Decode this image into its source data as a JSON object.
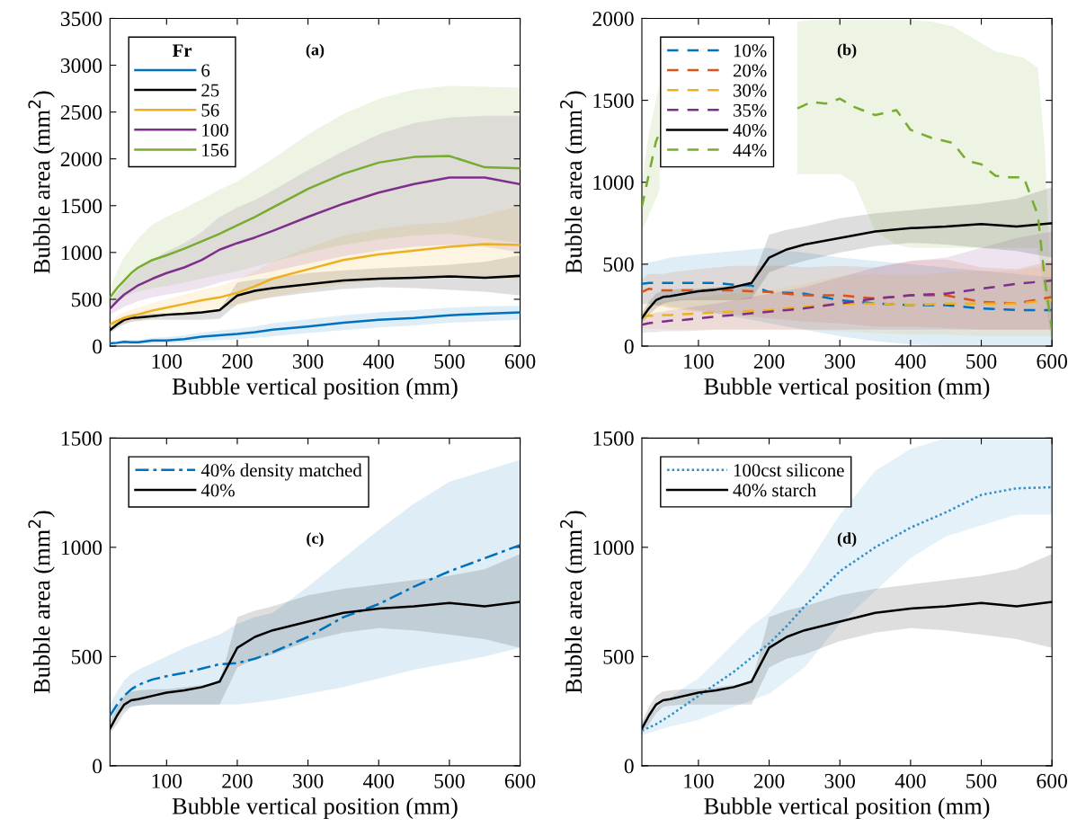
{
  "chart_data": [
    {
      "type": "line",
      "annotations": [
        "(a)"
      ],
      "xlabel": "Bubble vertical position (mm)",
      "ylabel": "Bubble area (mm$^{2}$)",
      "legend_title": "Fr",
      "legend": "top left",
      "grid": false,
      "xlim": [
        20,
        600
      ],
      "xticks": [
        100,
        200,
        300,
        400,
        500,
        600
      ],
      "ylim": [
        0,
        3500
      ],
      "yticks": [
        0,
        500,
        1000,
        1500,
        2000,
        2500,
        3000,
        3500
      ],
      "x": [
        20,
        30,
        40,
        50,
        60,
        80,
        100,
        125,
        150,
        175,
        200,
        225,
        250,
        300,
        350,
        400,
        450,
        500,
        550,
        600
      ],
      "series": [
        {
          "name": "6",
          "color": "#0072bd",
          "line_style": "solid",
          "values": [
            30,
            35,
            45,
            40,
            40,
            60,
            60,
            75,
            100,
            115,
            130,
            150,
            175,
            210,
            250,
            280,
            300,
            330,
            345,
            360
          ],
          "lower": [
            10,
            15,
            20,
            20,
            20,
            30,
            30,
            40,
            55,
            65,
            75,
            90,
            105,
            140,
            170,
            200,
            220,
            250,
            265,
            280
          ],
          "upper": [
            50,
            55,
            70,
            65,
            65,
            90,
            95,
            115,
            145,
            165,
            185,
            210,
            245,
            285,
            330,
            360,
            385,
            410,
            425,
            430
          ]
        },
        {
          "name": "25",
          "color": "#000000",
          "line_style": "solid",
          "values": [
            170,
            230,
            280,
            300,
            305,
            320,
            335,
            345,
            360,
            385,
            540,
            590,
            620,
            660,
            700,
            720,
            730,
            745,
            730,
            750
          ],
          "lower": [
            140,
            190,
            230,
            260,
            270,
            280,
            280,
            280,
            280,
            290,
            450,
            490,
            520,
            570,
            610,
            630,
            620,
            600,
            580,
            540
          ],
          "upper": [
            200,
            270,
            320,
            340,
            345,
            350,
            350,
            360,
            370,
            390,
            680,
            710,
            730,
            780,
            810,
            830,
            850,
            870,
            900,
            970
          ]
        },
        {
          "name": "56",
          "color": "#edb120",
          "line_style": "solid",
          "values": [
            230,
            270,
            300,
            320,
            340,
            380,
            410,
            450,
            490,
            520,
            570,
            640,
            720,
            820,
            920,
            980,
            1020,
            1060,
            1090,
            1080
          ],
          "lower": [
            190,
            220,
            240,
            260,
            270,
            300,
            320,
            350,
            380,
            400,
            430,
            480,
            530,
            600,
            660,
            700,
            720,
            740,
            750,
            700
          ],
          "upper": [
            270,
            320,
            360,
            390,
            410,
            460,
            500,
            550,
            600,
            640,
            710,
            800,
            900,
            1050,
            1180,
            1250,
            1300,
            1320,
            1400,
            1500
          ]
        },
        {
          "name": "100",
          "color": "#7e2f8e",
          "line_style": "solid",
          "values": [
            400,
            480,
            550,
            600,
            650,
            720,
            780,
            840,
            920,
            1030,
            1100,
            1160,
            1230,
            1380,
            1520,
            1640,
            1730,
            1800,
            1800,
            1730
          ],
          "lower": [
            330,
            380,
            420,
            450,
            480,
            520,
            550,
            580,
            620,
            680,
            720,
            760,
            800,
            880,
            960,
            1020,
            1060,
            1080,
            1060,
            1000
          ],
          "upper": [
            470,
            580,
            680,
            750,
            820,
            920,
            1010,
            1100,
            1220,
            1380,
            1480,
            1560,
            1660,
            1880,
            2080,
            2260,
            2380,
            2440,
            2460,
            2460
          ]
        },
        {
          "name": "156",
          "color": "#77ac30",
          "line_style": "solid",
          "values": [
            520,
            620,
            700,
            780,
            840,
            920,
            970,
            1040,
            1120,
            1200,
            1290,
            1380,
            1480,
            1680,
            1840,
            1960,
            2020,
            2030,
            1910,
            1900
          ],
          "lower": [
            420,
            480,
            520,
            560,
            580,
            620,
            640,
            680,
            720,
            760,
            800,
            850,
            900,
            1000,
            1080,
            1140,
            1180,
            1200,
            1150,
            1100
          ],
          "upper": [
            620,
            800,
            950,
            1050,
            1150,
            1300,
            1380,
            1470,
            1570,
            1670,
            1760,
            1880,
            2000,
            2260,
            2480,
            2640,
            2740,
            2780,
            2770,
            2760
          ]
        }
      ]
    },
    {
      "type": "line",
      "annotations": [
        "(b)"
      ],
      "xlabel": "Bubble vertical position (mm)",
      "ylabel": "Bubble area (mm$^{2}$)",
      "legend": "top left",
      "grid": false,
      "xlim": [
        20,
        600
      ],
      "xticks": [
        100,
        200,
        300,
        400,
        500,
        600
      ],
      "ylim": [
        0,
        2000
      ],
      "yticks": [
        0,
        500,
        1000,
        1500,
        2000
      ],
      "x": [
        20,
        30,
        40,
        50,
        60,
        80,
        100,
        125,
        150,
        175,
        200,
        225,
        250,
        300,
        350,
        400,
        450,
        500,
        550,
        600
      ],
      "series": [
        {
          "name": "10%",
          "color": "#0072bd",
          "line_style": "dashed",
          "values": [
            380,
            385,
            385,
            385,
            385,
            385,
            385,
            385,
            375,
            370,
            330,
            325,
            320,
            280,
            260,
            250,
            250,
            230,
            220,
            220
          ],
          "lower": [
            260,
            260,
            250,
            250,
            240,
            230,
            220,
            200,
            180,
            160,
            140,
            120,
            100,
            60,
            30,
            10,
            0,
            0,
            0,
            0
          ],
          "upper": [
            500,
            510,
            520,
            530,
            540,
            550,
            560,
            570,
            580,
            590,
            600,
            580,
            570,
            540,
            520,
            500,
            480,
            460,
            440,
            420
          ]
        },
        {
          "name": "20%",
          "color": "#d95319",
          "line_style": "dashed",
          "values": [
            330,
            350,
            345,
            340,
            340,
            340,
            340,
            340,
            340,
            335,
            330,
            320,
            310,
            310,
            290,
            310,
            310,
            270,
            260,
            300
          ],
          "lower": [
            250,
            260,
            250,
            240,
            230,
            220,
            210,
            200,
            190,
            180,
            170,
            160,
            150,
            140,
            120,
            120,
            110,
            100,
            100,
            100
          ],
          "upper": [
            410,
            440,
            440,
            440,
            450,
            460,
            470,
            480,
            490,
            490,
            490,
            490,
            480,
            490,
            480,
            520,
            530,
            480,
            470,
            520
          ]
        },
        {
          "name": "30%",
          "color": "#edb120",
          "line_style": "dashed",
          "values": [
            180,
            185,
            185,
            190,
            190,
            195,
            200,
            205,
            210,
            215,
            220,
            230,
            240,
            260,
            260,
            250,
            260,
            260,
            260,
            280
          ],
          "lower": [
            110,
            110,
            105,
            105,
            100,
            100,
            100,
            100,
            100,
            100,
            100,
            100,
            100,
            90,
            80,
            70,
            70,
            60,
            60,
            60
          ],
          "upper": [
            250,
            260,
            265,
            275,
            280,
            290,
            300,
            310,
            320,
            330,
            340,
            360,
            380,
            430,
            440,
            430,
            450,
            460,
            460,
            500
          ]
        },
        {
          "name": "35%",
          "color": "#7e2f8e",
          "line_style": "dashed",
          "values": [
            130,
            140,
            145,
            150,
            155,
            160,
            170,
            180,
            190,
            200,
            210,
            220,
            230,
            260,
            290,
            310,
            320,
            350,
            380,
            400
          ],
          "lower": [
            80,
            85,
            85,
            90,
            90,
            90,
            95,
            100,
            100,
            100,
            100,
            100,
            100,
            100,
            100,
            100,
            100,
            100,
            100,
            100
          ],
          "upper": [
            180,
            195,
            205,
            210,
            220,
            230,
            245,
            260,
            280,
            300,
            320,
            340,
            360,
            420,
            480,
            520,
            540,
            600,
            660,
            700
          ]
        },
        {
          "name": "40%",
          "color": "#000000",
          "line_style": "solid",
          "values": [
            170,
            230,
            280,
            300,
            305,
            320,
            335,
            345,
            360,
            385,
            540,
            590,
            620,
            660,
            700,
            720,
            730,
            745,
            730,
            750
          ],
          "lower": [
            140,
            190,
            230,
            260,
            270,
            280,
            280,
            280,
            280,
            290,
            450,
            490,
            520,
            570,
            610,
            630,
            620,
            600,
            580,
            540
          ],
          "upper": [
            200,
            270,
            320,
            340,
            345,
            350,
            350,
            360,
            370,
            390,
            680,
            710,
            730,
            780,
            810,
            830,
            850,
            870,
            900,
            970
          ]
        },
        {
          "name": "44%",
          "color": "#77ac30",
          "line_style": "dashed",
          "x": [
            20,
            30,
            40,
            45,
            50,
            240,
            260,
            280,
            300,
            320,
            350,
            380,
            400,
            430,
            460,
            480,
            500,
            520,
            540,
            560,
            580,
            590,
            600
          ],
          "values": [
            850,
            1050,
            1250,
            1300,
            null,
            1450,
            1490,
            1480,
            1510,
            1460,
            1410,
            1440,
            1320,
            1270,
            1240,
            1130,
            1110,
            1040,
            1030,
            1030,
            800,
            400,
            100
          ],
          "lower": [
            700,
            800,
            900,
            950,
            null,
            1050,
            1050,
            1050,
            1050,
            1000,
            700,
            620,
            600,
            600,
            600,
            600,
            600,
            600,
            600,
            600,
            600,
            300,
            0
          ],
          "upper": [
            1000,
            1300,
            1500,
            1600,
            null,
            1980,
            1990,
            1990,
            1990,
            1990,
            1990,
            1990,
            1990,
            1980,
            1950,
            1900,
            1850,
            1800,
            1780,
            1760,
            1700,
            1200,
            200
          ]
        }
      ]
    },
    {
      "type": "line",
      "annotations": [
        "(c)"
      ],
      "xlabel": "Bubble vertical position (mm)",
      "ylabel": "Bubble area (mm$^{2}$)",
      "legend": "top left",
      "grid": false,
      "xlim": [
        20,
        600
      ],
      "xticks": [
        100,
        200,
        300,
        400,
        500,
        600
      ],
      "ylim": [
        0,
        1500
      ],
      "yticks": [
        0,
        500,
        1000,
        1500
      ],
      "x": [
        20,
        30,
        40,
        50,
        60,
        80,
        100,
        125,
        150,
        175,
        200,
        225,
        250,
        300,
        350,
        400,
        450,
        500,
        550,
        600
      ],
      "series": [
        {
          "name": "40% density matched",
          "color": "#0072bd",
          "line_style": "dashdot",
          "values": [
            230,
            280,
            320,
            350,
            370,
            395,
            410,
            425,
            445,
            465,
            470,
            490,
            520,
            590,
            680,
            740,
            820,
            890,
            950,
            1010
          ],
          "lower": [
            190,
            230,
            260,
            270,
            275,
            280,
            280,
            280,
            280,
            280,
            280,
            290,
            300,
            330,
            360,
            400,
            440,
            470,
            500,
            540
          ],
          "upper": [
            280,
            340,
            390,
            420,
            440,
            470,
            500,
            540,
            570,
            600,
            650,
            680,
            700,
            820,
            950,
            1080,
            1200,
            1300,
            1350,
            1400
          ]
        },
        {
          "name": "40%",
          "color": "#000000",
          "line_style": "solid",
          "values": [
            170,
            230,
            280,
            300,
            305,
            320,
            335,
            345,
            360,
            385,
            540,
            590,
            620,
            660,
            700,
            720,
            730,
            745,
            730,
            750
          ],
          "lower": [
            150,
            190,
            240,
            270,
            275,
            280,
            280,
            280,
            280,
            280,
            450,
            490,
            510,
            570,
            610,
            630,
            620,
            600,
            580,
            540
          ],
          "upper": [
            200,
            270,
            320,
            340,
            345,
            350,
            350,
            360,
            370,
            380,
            680,
            710,
            730,
            780,
            810,
            830,
            850,
            870,
            900,
            970
          ]
        }
      ]
    },
    {
      "type": "line",
      "annotations": [
        "(d)"
      ],
      "xlabel": "Bubble vertical position (mm)",
      "ylabel": "Bubble area (mm$^{2}$)",
      "legend": "top left",
      "grid": false,
      "xlim": [
        20,
        600
      ],
      "xticks": [
        100,
        200,
        300,
        400,
        500,
        600
      ],
      "ylim": [
        0,
        1500
      ],
      "yticks": [
        0,
        500,
        1000,
        1500
      ],
      "x": [
        20,
        30,
        40,
        50,
        60,
        80,
        100,
        125,
        150,
        175,
        200,
        225,
        250,
        300,
        350,
        400,
        450,
        500,
        550,
        600
      ],
      "series": [
        {
          "name": "100cst silicone",
          "color": "#2e8fc8",
          "line_style": "dotted",
          "values": [
            160,
            175,
            190,
            210,
            230,
            275,
            320,
            375,
            430,
            495,
            560,
            640,
            730,
            890,
            1000,
            1090,
            1160,
            1240,
            1270,
            1275
          ],
          "lower": [
            140,
            150,
            160,
            170,
            180,
            195,
            210,
            240,
            270,
            300,
            330,
            390,
            450,
            650,
            800,
            950,
            1050,
            1100,
            1150,
            1150
          ],
          "upper": [
            200,
            230,
            260,
            290,
            310,
            360,
            400,
            480,
            560,
            640,
            700,
            800,
            900,
            1150,
            1350,
            1450,
            1500,
            1500,
            1500,
            1500
          ]
        },
        {
          "name": "40% starch",
          "color": "#000000",
          "line_style": "solid",
          "values": [
            170,
            230,
            280,
            300,
            305,
            320,
            335,
            345,
            360,
            385,
            540,
            590,
            620,
            660,
            700,
            720,
            730,
            745,
            730,
            750
          ],
          "lower": [
            150,
            190,
            240,
            270,
            275,
            280,
            280,
            280,
            280,
            280,
            450,
            490,
            510,
            570,
            610,
            630,
            620,
            600,
            580,
            540
          ],
          "upper": [
            200,
            270,
            320,
            340,
            345,
            350,
            350,
            360,
            370,
            380,
            680,
            710,
            730,
            780,
            810,
            830,
            850,
            870,
            900,
            970
          ]
        }
      ]
    }
  ]
}
